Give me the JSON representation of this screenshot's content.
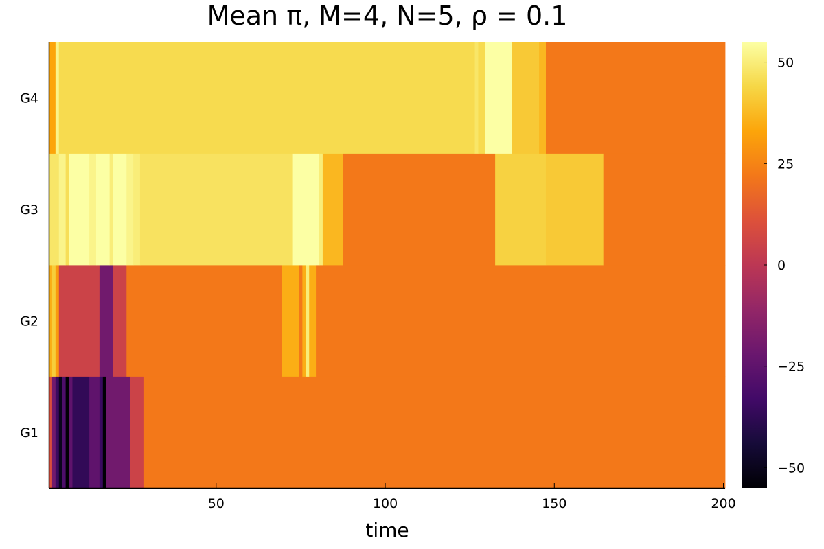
{
  "chart_data": {
    "type": "heatmap",
    "title": "Mean π, M=4, N=5, ρ = 0.1",
    "xlabel": "time",
    "ylabel": "",
    "xlim": [
      0.5,
      200.5
    ],
    "x_ticks": [
      {
        "value": 50,
        "label": "50"
      },
      {
        "value": 100,
        "label": "100"
      },
      {
        "value": 150,
        "label": "150"
      },
      {
        "value": 200,
        "label": "200"
      }
    ],
    "rows": [
      "G1",
      "G2",
      "G3",
      "G4"
    ],
    "colorbar": {
      "colormap": "inferno",
      "range": [
        -55,
        55
      ],
      "ticks": [
        {
          "value": 50,
          "label": "50"
        },
        {
          "value": 25,
          "label": "25"
        },
        {
          "value": 0,
          "label": "0"
        },
        {
          "value": -25,
          "label": "−25"
        },
        {
          "value": -50,
          "label": "−50"
        }
      ]
    },
    "segments": {
      "G1": [
        {
          "from": 1,
          "to": 2,
          "value": 10
        },
        {
          "from": 2,
          "to": 3,
          "value": -20
        },
        {
          "from": 3,
          "to": 4,
          "value": -35
        },
        {
          "from": 4,
          "to": 5,
          "value": -50
        },
        {
          "from": 5,
          "to": 6,
          "value": -30
        },
        {
          "from": 6,
          "to": 7,
          "value": -55
        },
        {
          "from": 7,
          "to": 8,
          "value": -25
        },
        {
          "from": 8,
          "to": 13,
          "value": -37
        },
        {
          "from": 13,
          "to": 16,
          "value": -25
        },
        {
          "from": 16,
          "to": 17,
          "value": -35
        },
        {
          "from": 17,
          "to": 18,
          "value": -55
        },
        {
          "from": 18,
          "to": 25,
          "value": -20
        },
        {
          "from": 25,
          "to": 29,
          "value": 5
        },
        {
          "from": 29,
          "to": 201,
          "value": 22
        }
      ],
      "G2": [
        {
          "from": 1,
          "to": 2,
          "value": 35
        },
        {
          "from": 2,
          "to": 3,
          "value": 42
        },
        {
          "from": 3,
          "to": 4,
          "value": 30
        },
        {
          "from": 4,
          "to": 16,
          "value": 5
        },
        {
          "from": 16,
          "to": 20,
          "value": -20
        },
        {
          "from": 20,
          "to": 24,
          "value": 5
        },
        {
          "from": 24,
          "to": 70,
          "value": 22
        },
        {
          "from": 70,
          "to": 75,
          "value": 35
        },
        {
          "from": 75,
          "to": 76,
          "value": 22
        },
        {
          "from": 76,
          "to": 77,
          "value": 35
        },
        {
          "from": 77,
          "to": 78,
          "value": 50
        },
        {
          "from": 78,
          "to": 80,
          "value": 35
        },
        {
          "from": 80,
          "to": 201,
          "value": 22
        }
      ],
      "G3": [
        {
          "from": 1,
          "to": 4,
          "value": 48
        },
        {
          "from": 4,
          "to": 6,
          "value": 52
        },
        {
          "from": 6,
          "to": 7,
          "value": 46
        },
        {
          "from": 7,
          "to": 13,
          "value": 55
        },
        {
          "from": 13,
          "to": 15,
          "value": 52
        },
        {
          "from": 15,
          "to": 19,
          "value": 55
        },
        {
          "from": 19,
          "to": 20,
          "value": 50
        },
        {
          "from": 20,
          "to": 24,
          "value": 55
        },
        {
          "from": 24,
          "to": 26,
          "value": 52
        },
        {
          "from": 26,
          "to": 28,
          "value": 50
        },
        {
          "from": 28,
          "to": 73,
          "value": 47
        },
        {
          "from": 73,
          "to": 81,
          "value": 55
        },
        {
          "from": 81,
          "to": 82,
          "value": 50
        },
        {
          "from": 82,
          "to": 88,
          "value": 37
        },
        {
          "from": 88,
          "to": 133,
          "value": 22
        },
        {
          "from": 133,
          "to": 148,
          "value": 43
        },
        {
          "from": 148,
          "to": 165,
          "value": 41
        },
        {
          "from": 165,
          "to": 201,
          "value": 22
        }
      ],
      "G4": [
        {
          "from": 1,
          "to": 3,
          "value": 33
        },
        {
          "from": 3,
          "to": 4,
          "value": 52
        },
        {
          "from": 4,
          "to": 127,
          "value": 45
        },
        {
          "from": 127,
          "to": 128,
          "value": 48
        },
        {
          "from": 128,
          "to": 130,
          "value": 45
        },
        {
          "from": 130,
          "to": 138,
          "value": 55
        },
        {
          "from": 138,
          "to": 146,
          "value": 41
        },
        {
          "from": 146,
          "to": 148,
          "value": 37
        },
        {
          "from": 148,
          "to": 201,
          "value": 22
        }
      ]
    }
  }
}
